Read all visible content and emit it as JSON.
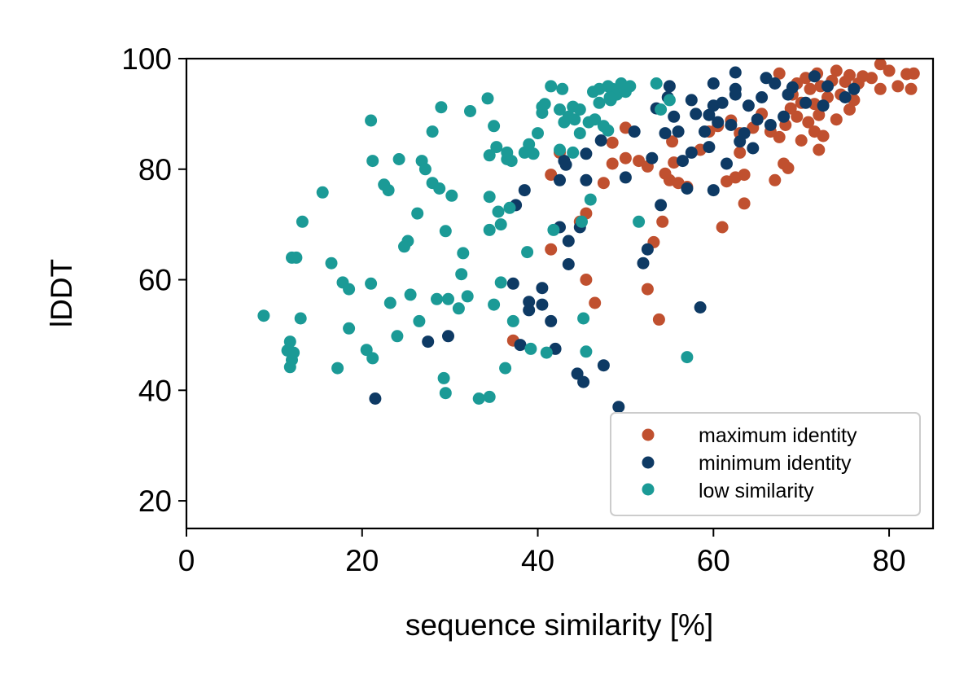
{
  "chart_data": {
    "type": "scatter",
    "title": "",
    "xlabel": "sequence similarity [%]",
    "ylabel": "lDDT",
    "xlim": [
      0,
      85
    ],
    "ylim": [
      15,
      100
    ],
    "xticks": [
      0,
      20,
      40,
      60,
      80
    ],
    "yticks": [
      20,
      40,
      60,
      80,
      100
    ],
    "grid": false,
    "legend_position": "bottom-right",
    "series": [
      {
        "name": "maximum identity",
        "color": "#c0502f",
        "points": [
          [
            37.2,
            49.0
          ],
          [
            41.5,
            65.5
          ],
          [
            41.5,
            79.0
          ],
          [
            42.5,
            83.0
          ],
          [
            44.8,
            70.5
          ],
          [
            45.5,
            72.0
          ],
          [
            45.5,
            60.0
          ],
          [
            46.5,
            55.8
          ],
          [
            47.5,
            77.5
          ],
          [
            48.5,
            81.0
          ],
          [
            48.5,
            84.8
          ],
          [
            50.0,
            82.0
          ],
          [
            50.0,
            87.5
          ],
          [
            51.5,
            81.5
          ],
          [
            52.5,
            80.5
          ],
          [
            52.5,
            58.3
          ],
          [
            53.2,
            66.8
          ],
          [
            53.8,
            52.8
          ],
          [
            54.2,
            70.5
          ],
          [
            54.5,
            79.2
          ],
          [
            55.0,
            78.0
          ],
          [
            55.5,
            81.2
          ],
          [
            55.3,
            85.0
          ],
          [
            56.0,
            77.5
          ],
          [
            57.0,
            76.8
          ],
          [
            58.5,
            83.5
          ],
          [
            59.5,
            86.8
          ],
          [
            60.5,
            87.8
          ],
          [
            61.0,
            69.5
          ],
          [
            61.5,
            77.8
          ],
          [
            62.0,
            88.8
          ],
          [
            62.5,
            78.5
          ],
          [
            63.0,
            83.0
          ],
          [
            63.0,
            86.5
          ],
          [
            63.5,
            73.8
          ],
          [
            63.5,
            79.0
          ],
          [
            64.5,
            87.5
          ],
          [
            65.5,
            90.0
          ],
          [
            66.5,
            86.8
          ],
          [
            67.0,
            78.0
          ],
          [
            67.5,
            85.8
          ],
          [
            68.0,
            81.0
          ],
          [
            68.2,
            88.0
          ],
          [
            68.5,
            80.2
          ],
          [
            68.8,
            91.0
          ],
          [
            69.0,
            93.5
          ],
          [
            69.5,
            89.5
          ],
          [
            70.0,
            85.2
          ],
          [
            70.0,
            92.0
          ],
          [
            70.5,
            96.5
          ],
          [
            70.8,
            88.5
          ],
          [
            71.0,
            94.5
          ],
          [
            71.5,
            86.8
          ],
          [
            71.5,
            91.8
          ],
          [
            72.0,
            83.5
          ],
          [
            72.0,
            89.8
          ],
          [
            72.2,
            95.0
          ],
          [
            72.5,
            86.0
          ],
          [
            73.0,
            93.0
          ],
          [
            73.5,
            96.0
          ],
          [
            74.0,
            89.0
          ],
          [
            74.0,
            97.8
          ],
          [
            74.5,
            93.5
          ],
          [
            75.0,
            95.8
          ],
          [
            75.5,
            90.8
          ],
          [
            75.5,
            97.0
          ],
          [
            76.0,
            92.5
          ],
          [
            76.5,
            95.5
          ],
          [
            77.0,
            96.8
          ],
          [
            78.0,
            96.5
          ],
          [
            79.0,
            99.0
          ],
          [
            79.0,
            94.5
          ],
          [
            80.0,
            97.8
          ],
          [
            81.0,
            95.0
          ],
          [
            82.0,
            97.2
          ],
          [
            82.5,
            94.5
          ],
          [
            82.8,
            97.3
          ],
          [
            71.8,
            97.3
          ],
          [
            67.5,
            97.3
          ],
          [
            69.5,
            95.5
          ]
        ]
      },
      {
        "name": "minimum identity",
        "color": "#0e3a64",
        "points": [
          [
            21.5,
            38.5
          ],
          [
            27.5,
            48.8
          ],
          [
            29.8,
            49.8
          ],
          [
            37.2,
            59.3
          ],
          [
            37.5,
            73.5
          ],
          [
            38.0,
            48.2
          ],
          [
            38.5,
            76.2
          ],
          [
            39.0,
            54.5
          ],
          [
            39.0,
            56.0
          ],
          [
            40.5,
            55.5
          ],
          [
            40.5,
            58.5
          ],
          [
            41.5,
            52.5
          ],
          [
            42.0,
            47.5
          ],
          [
            42.5,
            69.5
          ],
          [
            42.5,
            78.0
          ],
          [
            43.0,
            81.5
          ],
          [
            43.2,
            80.8
          ],
          [
            43.5,
            67.0
          ],
          [
            43.5,
            62.8
          ],
          [
            44.5,
            43.0
          ],
          [
            44.8,
            69.5
          ],
          [
            45.2,
            41.5
          ],
          [
            45.5,
            78.0
          ],
          [
            45.5,
            82.8
          ],
          [
            47.2,
            85.2
          ],
          [
            47.5,
            44.5
          ],
          [
            49.2,
            37.0
          ],
          [
            50.0,
            78.5
          ],
          [
            51.0,
            86.8
          ],
          [
            52.0,
            63.0
          ],
          [
            52.5,
            65.5
          ],
          [
            53.0,
            82.0
          ],
          [
            53.5,
            91.0
          ],
          [
            54.0,
            73.5
          ],
          [
            54.5,
            86.5
          ],
          [
            54.8,
            93.0
          ],
          [
            55.0,
            95.0
          ],
          [
            55.5,
            89.5
          ],
          [
            56.0,
            86.8
          ],
          [
            56.5,
            81.5
          ],
          [
            57.0,
            76.5
          ],
          [
            57.5,
            92.5
          ],
          [
            57.5,
            83.0
          ],
          [
            58.0,
            90.0
          ],
          [
            58.5,
            55.0
          ],
          [
            59.0,
            86.8
          ],
          [
            59.5,
            89.8
          ],
          [
            60.0,
            91.5
          ],
          [
            60.0,
            95.5
          ],
          [
            60.0,
            76.2
          ],
          [
            60.5,
            88.5
          ],
          [
            61.0,
            92.0
          ],
          [
            61.5,
            81.0
          ],
          [
            62.0,
            88.0
          ],
          [
            62.5,
            97.5
          ],
          [
            62.5,
            93.5
          ],
          [
            63.0,
            85.0
          ],
          [
            63.5,
            86.5
          ],
          [
            64.0,
            91.5
          ],
          [
            64.5,
            83.8
          ],
          [
            65.0,
            89.0
          ],
          [
            65.5,
            93.0
          ],
          [
            66.0,
            96.5
          ],
          [
            66.5,
            88.0
          ],
          [
            67.0,
            95.5
          ],
          [
            68.0,
            89.5
          ],
          [
            68.5,
            93.5
          ],
          [
            69.0,
            94.8
          ],
          [
            70.5,
            92.0
          ],
          [
            71.5,
            96.8
          ],
          [
            72.5,
            91.5
          ],
          [
            73.0,
            95.0
          ],
          [
            75.0,
            93.0
          ],
          [
            76.0,
            94.5
          ],
          [
            59.5,
            84.0
          ],
          [
            62.5,
            94.5
          ]
        ]
      },
      {
        "name": "low similarity",
        "color": "#1b9a96",
        "points": [
          [
            8.8,
            53.5
          ],
          [
            11.5,
            47.2
          ],
          [
            11.8,
            44.2
          ],
          [
            11.8,
            48.8
          ],
          [
            12.0,
            45.5
          ],
          [
            12.0,
            64.0
          ],
          [
            12.2,
            46.8
          ],
          [
            12.5,
            64.0
          ],
          [
            13.0,
            53.0
          ],
          [
            13.2,
            70.5
          ],
          [
            15.5,
            75.8
          ],
          [
            16.5,
            63.0
          ],
          [
            17.2,
            44.0
          ],
          [
            17.8,
            59.5
          ],
          [
            18.5,
            51.2
          ],
          [
            18.5,
            58.3
          ],
          [
            20.5,
            47.3
          ],
          [
            21.0,
            88.8
          ],
          [
            21.0,
            59.3
          ],
          [
            21.2,
            45.8
          ],
          [
            21.2,
            81.5
          ],
          [
            22.5,
            77.2
          ],
          [
            23.0,
            76.2
          ],
          [
            23.2,
            55.8
          ],
          [
            24.0,
            49.8
          ],
          [
            24.2,
            81.8
          ],
          [
            24.8,
            66.0
          ],
          [
            25.2,
            67.0
          ],
          [
            25.5,
            57.3
          ],
          [
            26.3,
            72.0
          ],
          [
            26.5,
            52.5
          ],
          [
            26.8,
            81.5
          ],
          [
            27.2,
            80.0
          ],
          [
            28.0,
            77.5
          ],
          [
            28.0,
            86.8
          ],
          [
            28.5,
            56.5
          ],
          [
            28.8,
            76.5
          ],
          [
            29.0,
            91.2
          ],
          [
            29.3,
            42.2
          ],
          [
            29.5,
            39.5
          ],
          [
            29.5,
            68.8
          ],
          [
            29.8,
            56.5
          ],
          [
            30.2,
            75.2
          ],
          [
            31.0,
            54.8
          ],
          [
            31.3,
            61.0
          ],
          [
            31.5,
            64.8
          ],
          [
            32.0,
            57.0
          ],
          [
            32.3,
            90.5
          ],
          [
            33.3,
            38.5
          ],
          [
            34.3,
            92.8
          ],
          [
            34.5,
            38.8
          ],
          [
            34.5,
            69.0
          ],
          [
            34.5,
            75.0
          ],
          [
            34.5,
            82.5
          ],
          [
            35.0,
            87.8
          ],
          [
            35.0,
            55.5
          ],
          [
            35.3,
            84.0
          ],
          [
            35.5,
            72.3
          ],
          [
            35.8,
            59.5
          ],
          [
            35.8,
            70.0
          ],
          [
            36.3,
            44.0
          ],
          [
            36.5,
            81.8
          ],
          [
            36.5,
            83.0
          ],
          [
            36.8,
            73.0
          ],
          [
            37.0,
            81.5
          ],
          [
            37.2,
            52.5
          ],
          [
            38.5,
            83.0
          ],
          [
            38.8,
            65.0
          ],
          [
            39.0,
            84.5
          ],
          [
            39.2,
            47.5
          ],
          [
            39.5,
            82.8
          ],
          [
            40.0,
            86.5
          ],
          [
            40.5,
            91.3
          ],
          [
            40.5,
            90.2
          ],
          [
            41.0,
            46.8
          ],
          [
            41.5,
            95.0
          ],
          [
            41.8,
            69.0
          ],
          [
            42.5,
            83.5
          ],
          [
            42.5,
            90.8
          ],
          [
            42.8,
            94.5
          ],
          [
            43.0,
            88.5
          ],
          [
            43.5,
            89.5
          ],
          [
            44.0,
            91.3
          ],
          [
            44.0,
            83.0
          ],
          [
            44.2,
            89.0
          ],
          [
            44.8,
            86.5
          ],
          [
            44.8,
            90.8
          ],
          [
            45.0,
            70.5
          ],
          [
            45.2,
            53.0
          ],
          [
            45.5,
            47.0
          ],
          [
            45.8,
            88.5
          ],
          [
            46.0,
            74.5
          ],
          [
            46.3,
            94.0
          ],
          [
            46.5,
            89.0
          ],
          [
            47.0,
            94.5
          ],
          [
            47.5,
            87.8
          ],
          [
            48.0,
            95.0
          ],
          [
            48.0,
            87.0
          ],
          [
            48.5,
            94.5
          ],
          [
            48.3,
            92.5
          ],
          [
            49.0,
            93.5
          ],
          [
            49.5,
            95.5
          ],
          [
            50.0,
            94.0
          ],
          [
            50.5,
            95.0
          ],
          [
            51.5,
            70.5
          ],
          [
            53.5,
            95.5
          ],
          [
            54.0,
            90.8
          ],
          [
            55.0,
            92.5
          ],
          [
            57.0,
            46.0
          ],
          [
            48.2,
            93.0
          ],
          [
            40.8,
            91.8
          ],
          [
            47.0,
            92.0
          ]
        ]
      }
    ]
  }
}
